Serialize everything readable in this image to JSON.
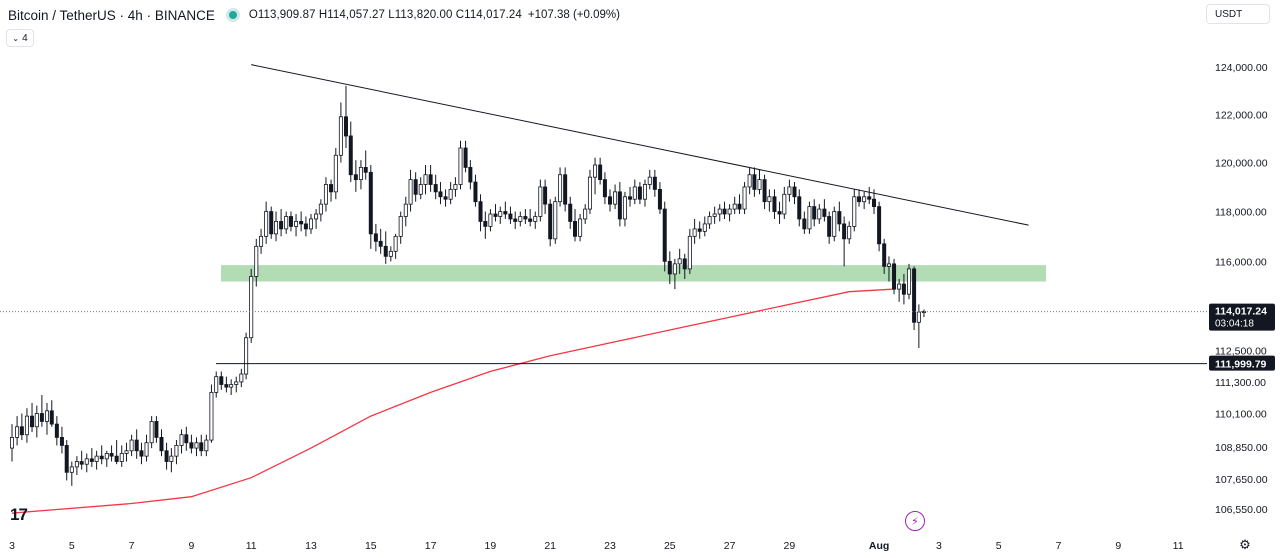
{
  "header": {
    "title": "Bitcoin / TetherUS · 4h · BINANCE",
    "ohlc": "O113,909.87  H114,057.27  L113,820.00  C114,017.24",
    "change": "+107.38 (+0.09%)"
  },
  "indicator_toggle": {
    "label": "4"
  },
  "currency_button": {
    "label": "USDT"
  },
  "logo": {
    "text": "17"
  },
  "icons": {
    "settings": "gear-icon",
    "alert": "lightning-icon",
    "collapse": "chevron-down-icon"
  },
  "colors": {
    "up": "#131722",
    "down": "#131722",
    "ma": "#f23645",
    "zone": "#a5d6a7",
    "trendline": "#131722"
  },
  "chart_data": {
    "type": "candlestick",
    "symbol": "Bitcoin / TetherUS",
    "timeframe": "4h",
    "exchange": "BINANCE",
    "yaxis_ticks": [
      "124,000.00",
      "122,000.00",
      "120,000.00",
      "118,000.00",
      "116,000.00",
      "112,500.00",
      "111,300.00",
      "110,100.00",
      "108,850.00",
      "107,650.00",
      "106,550.00"
    ],
    "yaxis_scale": "log",
    "xaxis_ticks": [
      "3",
      "5",
      "7",
      "9",
      "11",
      "13",
      "15",
      "17",
      "19",
      "21",
      "23",
      "25",
      "27",
      "29",
      "Aug",
      "3",
      "5",
      "7",
      "9",
      "11"
    ],
    "last_price": {
      "value": "114,017.24",
      "countdown": "03:04:18"
    },
    "horizontal_line": {
      "value": "111,999.79"
    },
    "support_zone": {
      "low": 115200,
      "high": 115850
    },
    "trendline": {
      "from": {
        "date": "2025-07-11",
        "price": 124100
      },
      "to": {
        "date": "2025-08-06",
        "price": 117450
      }
    },
    "moving_average": {
      "color": "#f23645",
      "points": [
        [
          3,
          106400
        ],
        [
          7,
          106750
        ],
        [
          9,
          107000
        ],
        [
          11,
          107700
        ],
        [
          13,
          108800
        ],
        [
          15,
          110000
        ],
        [
          17,
          110900
        ],
        [
          19,
          111700
        ],
        [
          21,
          112300
        ],
        [
          23,
          112800
        ],
        [
          25,
          113300
        ],
        [
          27,
          113800
        ],
        [
          29,
          114300
        ],
        [
          31,
          114800
        ],
        [
          32.5,
          114900
        ]
      ]
    },
    "candles": [
      [
        3.0,
        108800,
        109700,
        108300,
        109200
      ],
      [
        3.17,
        109200,
        110000,
        108900,
        109600
      ],
      [
        3.33,
        109600,
        110100,
        109100,
        109300
      ],
      [
        3.5,
        109300,
        110300,
        109000,
        110000
      ],
      [
        3.67,
        110000,
        110500,
        109400,
        109600
      ],
      [
        3.83,
        109600,
        110400,
        109200,
        110100
      ],
      [
        4.0,
        110100,
        110800,
        109600,
        109800
      ],
      [
        4.17,
        109800,
        110500,
        109300,
        110200
      ],
      [
        4.33,
        110200,
        110600,
        109600,
        109700
      ],
      [
        4.5,
        109700,
        110000,
        108900,
        109200
      ],
      [
        4.67,
        109200,
        109600,
        108600,
        108900
      ],
      [
        4.83,
        108900,
        109100,
        107600,
        107900
      ],
      [
        5.0,
        107900,
        108300,
        107400,
        108100
      ],
      [
        5.17,
        108100,
        108500,
        107800,
        108300
      ],
      [
        5.33,
        108300,
        108700,
        108000,
        108200
      ],
      [
        5.5,
        108200,
        108600,
        107900,
        108400
      ],
      [
        5.67,
        108400,
        108800,
        108100,
        108300
      ],
      [
        5.83,
        108300,
        108700,
        108000,
        108500
      ],
      [
        6.0,
        108500,
        108900,
        108200,
        108400
      ],
      [
        6.17,
        108400,
        108700,
        108100,
        108600
      ],
      [
        6.33,
        108600,
        108900,
        108300,
        108500
      ],
      [
        6.5,
        108500,
        109100,
        108200,
        108300
      ],
      [
        6.67,
        108300,
        108900,
        108100,
        108600
      ],
      [
        6.83,
        108600,
        109000,
        108300,
        108700
      ],
      [
        7.0,
        108700,
        109300,
        108500,
        109100
      ],
      [
        7.17,
        109100,
        109500,
        108400,
        108700
      ],
      [
        7.33,
        108700,
        109000,
        108200,
        108500
      ],
      [
        7.5,
        108500,
        109300,
        108300,
        109000
      ],
      [
        7.67,
        109000,
        110000,
        108800,
        109800
      ],
      [
        7.83,
        109800,
        110000,
        109000,
        109200
      ],
      [
        8.0,
        109200,
        109500,
        108500,
        108700
      ],
      [
        8.17,
        108700,
        109000,
        108000,
        108300
      ],
      [
        8.33,
        108300,
        108800,
        107900,
        108500
      ],
      [
        8.5,
        108500,
        109100,
        108200,
        108900
      ],
      [
        8.67,
        108900,
        109500,
        108600,
        109300
      ],
      [
        8.83,
        109300,
        109600,
        108700,
        109000
      ],
      [
        9.0,
        109000,
        109300,
        108600,
        108800
      ],
      [
        9.17,
        108800,
        109200,
        108500,
        109000
      ],
      [
        9.33,
        109000,
        109300,
        108500,
        108700
      ],
      [
        9.5,
        108700,
        109300,
        108500,
        109100
      ],
      [
        9.67,
        109100,
        111200,
        109000,
        110900
      ],
      [
        9.83,
        110900,
        111700,
        110700,
        111500
      ],
      [
        10.0,
        111500,
        111700,
        111000,
        111200
      ],
      [
        10.17,
        111200,
        111500,
        110900,
        111100
      ],
      [
        10.33,
        111100,
        111400,
        110800,
        111200
      ],
      [
        10.5,
        111200,
        111500,
        110900,
        111300
      ],
      [
        10.67,
        111300,
        111800,
        111100,
        111600
      ],
      [
        10.83,
        111600,
        113200,
        111400,
        113000
      ],
      [
        11.0,
        113000,
        115700,
        112800,
        115400
      ],
      [
        11.17,
        115400,
        116900,
        115000,
        116600
      ],
      [
        11.33,
        116600,
        117300,
        116300,
        117000
      ],
      [
        11.5,
        117000,
        118400,
        116700,
        118000
      ],
      [
        11.67,
        118000,
        118200,
        116900,
        117100
      ],
      [
        11.83,
        117100,
        118000,
        116800,
        117600
      ],
      [
        12.0,
        117600,
        118100,
        117000,
        117300
      ],
      [
        12.17,
        117300,
        118000,
        117100,
        117800
      ],
      [
        12.33,
        117800,
        118000,
        117200,
        117400
      ],
      [
        12.5,
        117400,
        117900,
        117000,
        117600
      ],
      [
        12.67,
        117600,
        118000,
        117200,
        117500
      ],
      [
        12.83,
        117500,
        117800,
        117000,
        117300
      ],
      [
        13.0,
        117300,
        117900,
        117100,
        117700
      ],
      [
        13.17,
        117700,
        118100,
        117300,
        117900
      ],
      [
        13.33,
        117900,
        118500,
        117600,
        118300
      ],
      [
        13.5,
        118300,
        119400,
        118000,
        119100
      ],
      [
        13.67,
        119100,
        119300,
        118400,
        118800
      ],
      [
        13.83,
        118800,
        120600,
        118500,
        120300
      ],
      [
        14.0,
        120300,
        122500,
        120000,
        121900
      ],
      [
        14.17,
        121900,
        123200,
        120600,
        121100
      ],
      [
        14.33,
        121100,
        121700,
        119200,
        119500
      ],
      [
        14.5,
        119500,
        120100,
        118800,
        119300
      ],
      [
        14.67,
        119300,
        120100,
        118900,
        119800
      ],
      [
        14.83,
        119800,
        120500,
        119300,
        119600
      ],
      [
        15.0,
        119600,
        119900,
        116500,
        117100
      ],
      [
        15.17,
        117100,
        117500,
        116400,
        116800
      ],
      [
        15.33,
        116800,
        117300,
        116300,
        116600
      ],
      [
        15.5,
        116600,
        117200,
        115900,
        116200
      ],
      [
        15.67,
        116200,
        116600,
        116000,
        116400
      ],
      [
        15.83,
        116400,
        117100,
        116100,
        117000
      ],
      [
        16.0,
        117000,
        118000,
        116700,
        117800
      ],
      [
        16.17,
        117800,
        118600,
        117400,
        118300
      ],
      [
        16.33,
        118300,
        119700,
        118000,
        119300
      ],
      [
        16.5,
        119300,
        119600,
        118400,
        118700
      ],
      [
        16.67,
        118700,
        119400,
        118500,
        119100
      ],
      [
        16.83,
        119100,
        119900,
        118700,
        119500
      ],
      [
        17.0,
        119500,
        119900,
        118800,
        119100
      ],
      [
        17.17,
        119100,
        119500,
        118500,
        118800
      ],
      [
        17.33,
        118800,
        119200,
        118300,
        118600
      ],
      [
        17.5,
        118600,
        118900,
        118200,
        118500
      ],
      [
        17.67,
        118500,
        119200,
        118300,
        118900
      ],
      [
        17.83,
        118900,
        119400,
        118600,
        119100
      ],
      [
        18.0,
        119100,
        120900,
        118900,
        120600
      ],
      [
        18.17,
        120600,
        120900,
        119600,
        119800
      ],
      [
        18.33,
        119800,
        120100,
        118900,
        119200
      ],
      [
        18.5,
        119200,
        119500,
        118200,
        118400
      ],
      [
        18.67,
        118400,
        118700,
        117200,
        117600
      ],
      [
        18.83,
        117600,
        118000,
        116900,
        117400
      ],
      [
        19.0,
        117400,
        118100,
        117200,
        117900
      ],
      [
        19.17,
        117900,
        118300,
        117600,
        117800
      ],
      [
        19.33,
        117800,
        118200,
        117500,
        118000
      ],
      [
        19.5,
        118000,
        118400,
        117700,
        117900
      ],
      [
        19.67,
        117900,
        118200,
        117500,
        117700
      ],
      [
        19.83,
        117700,
        118000,
        117300,
        117600
      ],
      [
        20.0,
        117600,
        118000,
        117400,
        117800
      ],
      [
        20.17,
        117800,
        118100,
        117500,
        117700
      ],
      [
        20.33,
        117700,
        118100,
        117400,
        117600
      ],
      [
        20.5,
        117600,
        118000,
        117300,
        117800
      ],
      [
        20.67,
        117800,
        119300,
        117600,
        119000
      ],
      [
        20.83,
        119000,
        119300,
        117900,
        118300
      ],
      [
        21.0,
        118300,
        118500,
        116600,
        116900
      ],
      [
        21.17,
        116900,
        118600,
        116700,
        118400
      ],
      [
        21.33,
        118400,
        119800,
        118200,
        119500
      ],
      [
        21.5,
        119500,
        119800,
        118000,
        118300
      ],
      [
        21.67,
        118300,
        118600,
        117300,
        117600
      ],
      [
        21.83,
        117600,
        118100,
        116800,
        117000
      ],
      [
        22.0,
        117000,
        117900,
        116800,
        117700
      ],
      [
        22.17,
        117700,
        118300,
        117500,
        118100
      ],
      [
        22.33,
        118100,
        119700,
        117900,
        119400
      ],
      [
        22.5,
        119400,
        120200,
        118700,
        119900
      ],
      [
        22.67,
        119900,
        120200,
        119100,
        119300
      ],
      [
        22.83,
        119300,
        119600,
        118300,
        118600
      ],
      [
        23.0,
        118600,
        118900,
        118000,
        118300
      ],
      [
        23.17,
        118300,
        119100,
        118100,
        118800
      ],
      [
        23.33,
        118800,
        119200,
        117400,
        117700
      ],
      [
        23.5,
        117700,
        118800,
        117400,
        118600
      ],
      [
        23.67,
        118600,
        119000,
        118200,
        118500
      ],
      [
        23.83,
        118500,
        119300,
        118300,
        119000
      ],
      [
        24.0,
        119000,
        119200,
        118300,
        118500
      ],
      [
        24.17,
        118500,
        119300,
        118200,
        119100
      ],
      [
        24.33,
        119100,
        119700,
        118900,
        119400
      ],
      [
        24.5,
        119400,
        119700,
        118600,
        118900
      ],
      [
        24.67,
        118900,
        119200,
        117900,
        118100
      ],
      [
        24.83,
        118100,
        118400,
        115600,
        116000
      ],
      [
        25.0,
        116000,
        116400,
        115100,
        115500
      ],
      [
        25.17,
        115500,
        116100,
        114900,
        115900
      ],
      [
        25.33,
        115900,
        116500,
        115500,
        116100
      ],
      [
        25.5,
        116100,
        116300,
        115300,
        115700
      ],
      [
        25.67,
        115700,
        117300,
        115500,
        117000
      ],
      [
        25.83,
        117000,
        117700,
        116700,
        117300
      ],
      [
        26.0,
        117300,
        117600,
        116900,
        117200
      ],
      [
        26.17,
        117200,
        117800,
        117000,
        117500
      ],
      [
        26.33,
        117500,
        118000,
        117300,
        117800
      ],
      [
        26.5,
        117800,
        118200,
        117500,
        117900
      ],
      [
        26.67,
        117900,
        118300,
        117600,
        118100
      ],
      [
        26.83,
        118100,
        118400,
        117700,
        117900
      ],
      [
        27.0,
        117900,
        118300,
        117600,
        118100
      ],
      [
        27.17,
        118100,
        118600,
        117900,
        118300
      ],
      [
        27.33,
        118300,
        118700,
        117900,
        118100
      ],
      [
        27.5,
        118100,
        119200,
        117900,
        119000
      ],
      [
        27.67,
        119000,
        119800,
        118700,
        119500
      ],
      [
        27.83,
        119500,
        119800,
        118600,
        118900
      ],
      [
        28.0,
        118900,
        119700,
        118700,
        119300
      ],
      [
        28.17,
        119300,
        119500,
        118100,
        118400
      ],
      [
        28.33,
        118400,
        118900,
        118000,
        118600
      ],
      [
        28.5,
        118600,
        118900,
        117700,
        118000
      ],
      [
        28.67,
        118000,
        118400,
        117500,
        117900
      ],
      [
        28.83,
        117900,
        119000,
        117700,
        118700
      ],
      [
        29.0,
        118700,
        119300,
        118400,
        119000
      ],
      [
        29.17,
        119000,
        119200,
        118300,
        118600
      ],
      [
        29.33,
        118600,
        118900,
        117400,
        117700
      ],
      [
        29.5,
        117700,
        118000,
        117100,
        117300
      ],
      [
        29.67,
        117300,
        118400,
        117100,
        118200
      ],
      [
        29.83,
        118200,
        118500,
        117400,
        117700
      ],
      [
        30.0,
        117700,
        118300,
        117500,
        118100
      ],
      [
        30.17,
        118100,
        118500,
        117600,
        117800
      ],
      [
        30.33,
        117800,
        118000,
        116700,
        117000
      ],
      [
        30.5,
        117000,
        118200,
        116800,
        118000
      ],
      [
        30.67,
        118000,
        118400,
        117200,
        117500
      ],
      [
        30.83,
        117500,
        117800,
        115800,
        116900
      ],
      [
        31.0,
        116900,
        117600,
        116700,
        117400
      ],
      [
        31.17,
        117400,
        118900,
        117200,
        118600
      ],
      [
        31.33,
        118600,
        118900,
        118200,
        118400
      ],
      [
        31.5,
        118400,
        118800,
        118100,
        118600
      ],
      [
        31.67,
        118600,
        119000,
        118300,
        118500
      ],
      [
        31.83,
        118500,
        118900,
        117900,
        118200
      ],
      [
        32.0,
        118200,
        118400,
        116400,
        116700
      ],
      [
        32.17,
        116700,
        116900,
        115500,
        115800
      ],
      [
        32.33,
        115800,
        116200,
        115200,
        115900
      ],
      [
        32.5,
        115900,
        116100,
        114700,
        114900
      ],
      [
        32.67,
        114900,
        115300,
        114400,
        115100
      ],
      [
        32.83,
        115100,
        115500,
        114300,
        114700
      ],
      [
        33.0,
        114700,
        115900,
        114500,
        115700
      ],
      [
        33.17,
        115700,
        115800,
        113300,
        113600
      ],
      [
        33.33,
        113600,
        114300,
        112600,
        114000
      ],
      [
        33.5,
        114000,
        114100,
        113800,
        114017
      ]
    ]
  }
}
